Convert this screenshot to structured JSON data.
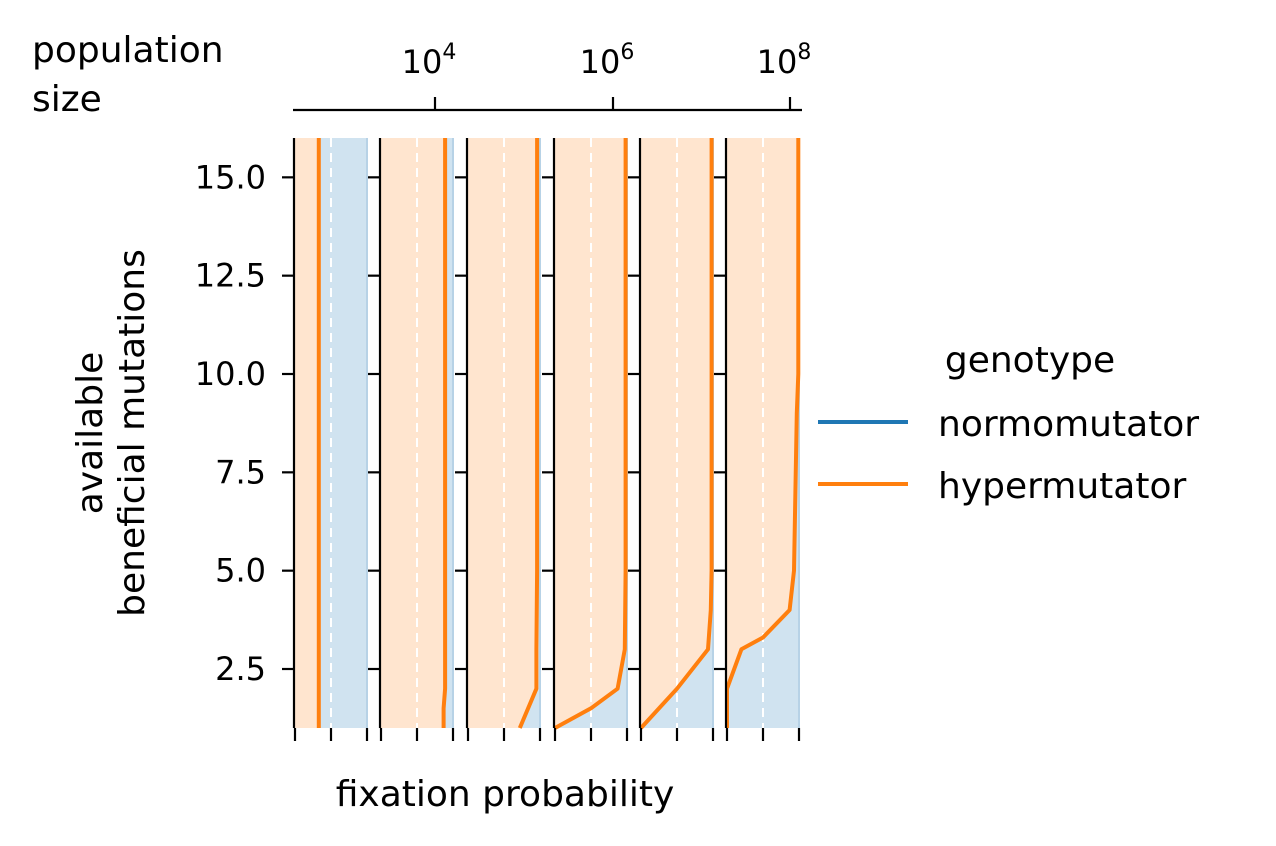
{
  "chart_data": {
    "type": "line",
    "top_axis": {
      "title_line1": "population",
      "title_line2": "size",
      "scale": "log",
      "tick_bases": [
        "10",
        "10",
        "10"
      ],
      "tick_exponents": [
        "4",
        "6",
        "8"
      ]
    },
    "xlabel": "fixation probability",
    "ylabel_line1": "available",
    "ylabel_line2": "beneficial mutations",
    "ylim": [
      1,
      16
    ],
    "yticks": [
      2.5,
      5.0,
      7.5,
      10.0,
      12.5,
      15.0
    ],
    "ytick_labels": [
      "2.5",
      "5.0",
      "7.5",
      "10.0",
      "12.5",
      "15.0"
    ],
    "xlim": [
      0,
      1
    ],
    "panels": [
      {
        "hyper_x": [
          0.33,
          0.33
        ],
        "y": [
          1,
          16
        ]
      },
      {
        "hyper_x": [
          0.87,
          0.87,
          0.89,
          0.89,
          0.89
        ],
        "y": [
          1,
          1.5,
          2,
          3,
          16
        ]
      },
      {
        "hyper_x": [
          0.72,
          0.95,
          0.95,
          0.96,
          0.96
        ],
        "y": [
          1,
          2,
          3,
          5,
          16
        ]
      },
      {
        "hyper_x": [
          0.0,
          0.5,
          0.87,
          0.97,
          0.98,
          0.98
        ],
        "y": [
          1,
          1.5,
          2,
          3,
          5,
          16
        ]
      },
      {
        "hyper_x": [
          0.0,
          0.5,
          0.93,
          0.97,
          0.98,
          0.98
        ],
        "y": [
          1,
          2,
          3,
          4,
          5,
          16
        ]
      },
      {
        "hyper_x": [
          0.0,
          0.0,
          0.2,
          0.5,
          0.87,
          0.93,
          0.95,
          0.97,
          0.99,
          0.99
        ],
        "y": [
          1,
          2,
          3,
          3.3,
          4,
          5,
          7,
          9,
          10,
          16
        ]
      }
    ],
    "legend": {
      "title": "genotype",
      "position": "right",
      "entries": [
        {
          "label": "normomutator",
          "color": "#1f77b4"
        },
        {
          "label": "hypermutator",
          "color": "#ff7f0e"
        }
      ]
    },
    "colors": {
      "hyper_fill": "#ffe5cf",
      "normo_fill": "#d0e3f0",
      "hyper_line": "#ff7f0e",
      "normo_line": "#1f77b4",
      "median_line": "#ffffff"
    }
  }
}
